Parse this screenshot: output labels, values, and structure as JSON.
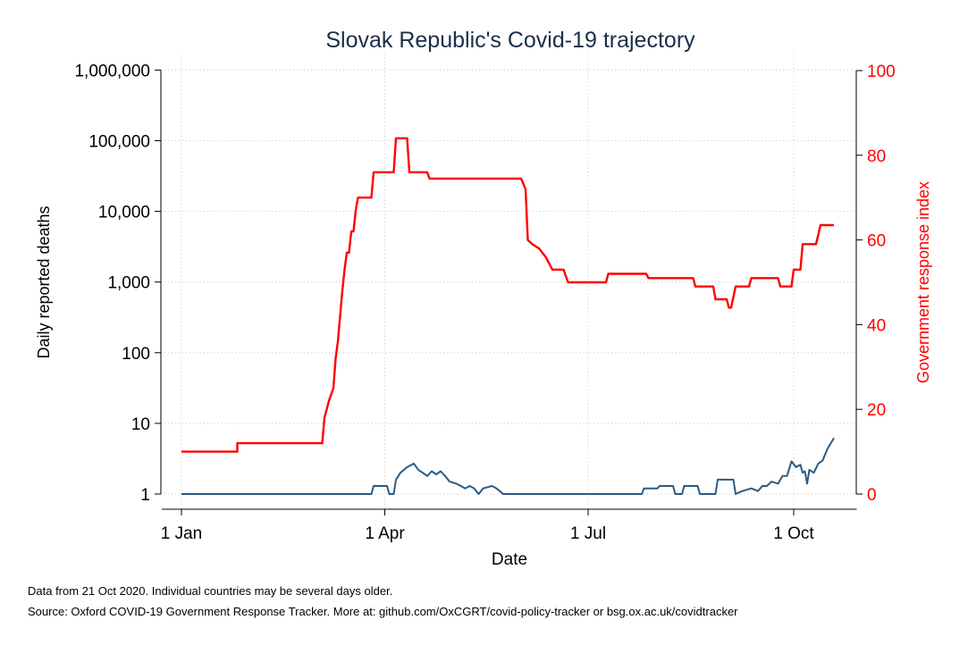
{
  "chart_data": {
    "type": "line",
    "title": "Slovak Republic's Covid-19 trajectory",
    "xlabel": "Date",
    "ylabel_left": "Daily reported deaths",
    "ylabel_right": "Government response index",
    "x_ticks": [
      "1 Jan",
      "1 Apr",
      "1 Jul",
      "1 Oct"
    ],
    "x_tick_days": [
      0,
      91,
      182,
      274
    ],
    "x_range_days": [
      0,
      295
    ],
    "y_left_scale": "log",
    "y_left_ticks": [
      {
        "value": 1,
        "label": "1"
      },
      {
        "value": 10,
        "label": "10"
      },
      {
        "value": 100,
        "label": "100"
      },
      {
        "value": 1000,
        "label": "1,000"
      },
      {
        "value": 10000,
        "label": "10,000"
      },
      {
        "value": 100000,
        "label": "100,000"
      },
      {
        "value": 1000000,
        "label": "1,000,000"
      }
    ],
    "y_right_ticks": [
      0,
      20,
      40,
      60,
      80,
      100
    ],
    "y_right_range": [
      0,
      100
    ],
    "grid": true,
    "series": [
      {
        "axis": "left",
        "color": "#2b5b84",
        "points": [
          [
            "2020-01-01",
            1
          ],
          [
            "2020-03-26",
            1
          ],
          [
            "2020-03-27",
            1.3
          ],
          [
            "2020-04-02",
            1.3
          ],
          [
            "2020-04-03",
            1
          ],
          [
            "2020-04-05",
            1
          ],
          [
            "2020-04-06",
            1.6
          ],
          [
            "2020-04-08",
            2
          ],
          [
            "2020-04-11",
            2.4
          ],
          [
            "2020-04-14",
            2.7
          ],
          [
            "2020-04-16",
            2.2
          ],
          [
            "2020-04-18",
            2
          ],
          [
            "2020-04-20",
            1.8
          ],
          [
            "2020-04-22",
            2.1
          ],
          [
            "2020-04-24",
            1.9
          ],
          [
            "2020-04-26",
            2.1
          ],
          [
            "2020-04-28",
            1.8
          ],
          [
            "2020-04-30",
            1.5
          ],
          [
            "2020-05-03",
            1.4
          ],
          [
            "2020-05-05",
            1.3
          ],
          [
            "2020-05-07",
            1.2
          ],
          [
            "2020-05-09",
            1.3
          ],
          [
            "2020-05-11",
            1.2
          ],
          [
            "2020-05-13",
            1
          ],
          [
            "2020-05-15",
            1.2
          ],
          [
            "2020-05-19",
            1.3
          ],
          [
            "2020-05-21",
            1.2
          ],
          [
            "2020-05-24",
            1
          ],
          [
            "2020-07-25",
            1
          ],
          [
            "2020-07-26",
            1.2
          ],
          [
            "2020-08-01",
            1.2
          ],
          [
            "2020-08-02",
            1.3
          ],
          [
            "2020-08-08",
            1.3
          ],
          [
            "2020-08-09",
            1
          ],
          [
            "2020-08-12",
            1
          ],
          [
            "2020-08-13",
            1.3
          ],
          [
            "2020-08-19",
            1.3
          ],
          [
            "2020-08-20",
            1
          ],
          [
            "2020-08-27",
            1
          ],
          [
            "2020-08-28",
            1.6
          ],
          [
            "2020-09-04",
            1.6
          ],
          [
            "2020-09-05",
            1
          ],
          [
            "2020-09-08",
            1.1
          ],
          [
            "2020-09-12",
            1.2
          ],
          [
            "2020-09-15",
            1.1
          ],
          [
            "2020-09-17",
            1.3
          ],
          [
            "2020-09-19",
            1.3
          ],
          [
            "2020-09-21",
            1.5
          ],
          [
            "2020-09-24",
            1.4
          ],
          [
            "2020-09-26",
            1.8
          ],
          [
            "2020-09-28",
            1.8
          ],
          [
            "2020-09-30",
            2.9
          ],
          [
            "2020-10-02",
            2.4
          ],
          [
            "2020-10-04",
            2.6
          ],
          [
            "2020-10-05",
            2
          ],
          [
            "2020-10-06",
            2.1
          ],
          [
            "2020-10-07",
            1.4
          ],
          [
            "2020-10-08",
            2.2
          ],
          [
            "2020-10-10",
            2
          ],
          [
            "2020-10-12",
            2.7
          ],
          [
            "2020-10-14",
            3
          ],
          [
            "2020-10-16",
            4.3
          ],
          [
            "2020-10-19",
            6.2
          ]
        ]
      },
      {
        "axis": "right",
        "color": "#ff0000",
        "points": [
          [
            "2020-01-01",
            10
          ],
          [
            "2020-01-26",
            10
          ],
          [
            "2020-01-26",
            12
          ],
          [
            "2020-03-04",
            12
          ],
          [
            "2020-03-05",
            18
          ],
          [
            "2020-03-07",
            22
          ],
          [
            "2020-03-09",
            25
          ],
          [
            "2020-03-10",
            32
          ],
          [
            "2020-03-11",
            36
          ],
          [
            "2020-03-13",
            48
          ],
          [
            "2020-03-14",
            53
          ],
          [
            "2020-03-15",
            57
          ],
          [
            "2020-03-16",
            57
          ],
          [
            "2020-03-17",
            62
          ],
          [
            "2020-03-18",
            62
          ],
          [
            "2020-03-19",
            67
          ],
          [
            "2020-03-20",
            70
          ],
          [
            "2020-03-26",
            70
          ],
          [
            "2020-03-27",
            76
          ],
          [
            "2020-04-05",
            76
          ],
          [
            "2020-04-06",
            84
          ],
          [
            "2020-04-11",
            84
          ],
          [
            "2020-04-12",
            76
          ],
          [
            "2020-04-20",
            76
          ],
          [
            "2020-04-21",
            74.5
          ],
          [
            "2020-06-01",
            74.5
          ],
          [
            "2020-06-03",
            72
          ],
          [
            "2020-06-04",
            60
          ],
          [
            "2020-06-06",
            59
          ],
          [
            "2020-06-09",
            58
          ],
          [
            "2020-06-12",
            56
          ],
          [
            "2020-06-15",
            53
          ],
          [
            "2020-06-20",
            53
          ],
          [
            "2020-06-22",
            50
          ],
          [
            "2020-07-09",
            50
          ],
          [
            "2020-07-10",
            52
          ],
          [
            "2020-07-27",
            52
          ],
          [
            "2020-07-28",
            51
          ],
          [
            "2020-08-17",
            51
          ],
          [
            "2020-08-18",
            49
          ],
          [
            "2020-08-26",
            49
          ],
          [
            "2020-08-27",
            46
          ],
          [
            "2020-09-01",
            46
          ],
          [
            "2020-09-02",
            44
          ],
          [
            "2020-09-03",
            44
          ],
          [
            "2020-09-05",
            49
          ],
          [
            "2020-09-11",
            49
          ],
          [
            "2020-09-12",
            51
          ],
          [
            "2020-09-24",
            51
          ],
          [
            "2020-09-25",
            49
          ],
          [
            "2020-09-30",
            49
          ],
          [
            "2020-10-01",
            53
          ],
          [
            "2020-10-04",
            53
          ],
          [
            "2020-10-05",
            59
          ],
          [
            "2020-10-11",
            59
          ],
          [
            "2020-10-13",
            63.5
          ],
          [
            "2020-10-19",
            63.5
          ]
        ]
      }
    ]
  },
  "notes": {
    "line1": "Data from 21 Oct 2020. Individual countries may be several days older.",
    "line2": "Source: Oxford COVID-19 Government Response Tracker. More at: github.com/OxCGRT/covid-policy-tracker or bsg.ox.ac.uk/covidtracker"
  }
}
